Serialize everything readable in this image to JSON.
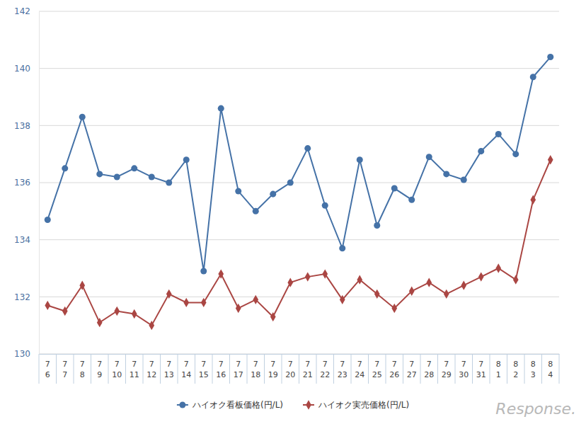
{
  "chart_data": {
    "type": "line",
    "categories": [
      "7\n6",
      "7\n7",
      "7\n8",
      "7\n9",
      "7\n10",
      "7\n11",
      "7\n12",
      "7\n13",
      "7\n14",
      "7\n15",
      "7\n16",
      "7\n17",
      "7\n18",
      "7\n19",
      "7\n20",
      "7\n21",
      "7\n22",
      "7\n23",
      "7\n24",
      "7\n25",
      "7\n26",
      "7\n27",
      "7\n28",
      "7\n29",
      "7\n30",
      "7\n31",
      "8\n1",
      "8\n2",
      "8\n3",
      "8\n4"
    ],
    "series": [
      {
        "name": "ハイオク看板価格(円/L)",
        "color": "#4572a7",
        "marker": "circle",
        "values": [
          134.7,
          136.5,
          138.3,
          136.3,
          136.2,
          136.5,
          136.2,
          136.0,
          136.8,
          132.9,
          138.6,
          135.7,
          135.0,
          135.6,
          136.0,
          137.2,
          135.2,
          133.7,
          136.8,
          134.5,
          135.8,
          135.4,
          136.9,
          136.3,
          136.1,
          137.1,
          137.7,
          137.0,
          139.7,
          140.4
        ]
      },
      {
        "name": "ハイオク実売価格(円/L)",
        "color": "#aa4643",
        "marker": "diamond",
        "values": [
          131.7,
          131.5,
          132.4,
          131.1,
          131.5,
          131.4,
          131.0,
          132.1,
          131.8,
          131.8,
          132.8,
          131.6,
          131.9,
          131.3,
          132.5,
          132.7,
          132.8,
          131.9,
          132.6,
          132.1,
          131.6,
          132.2,
          132.5,
          132.1,
          132.4,
          132.7,
          133.0,
          132.6,
          135.4,
          136.8
        ]
      }
    ],
    "ylim": [
      130,
      142
    ],
    "yticks": [
      130,
      132,
      134,
      136,
      138,
      140,
      142
    ],
    "grid": true,
    "legend": "bottom",
    "annotations": [
      "Response."
    ]
  }
}
